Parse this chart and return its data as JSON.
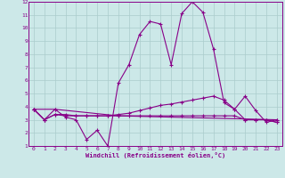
{
  "xlabel": "Windchill (Refroidissement éolien,°C)",
  "bg_color": "#cce8e8",
  "line_color": "#880088",
  "grid_color": "#aacccc",
  "xlim": [
    -0.5,
    23.5
  ],
  "ylim": [
    1,
    12
  ],
  "xticks": [
    0,
    1,
    2,
    3,
    4,
    5,
    6,
    7,
    8,
    9,
    10,
    11,
    12,
    13,
    14,
    15,
    16,
    17,
    18,
    19,
    20,
    21,
    22,
    23
  ],
  "yticks": [
    1,
    2,
    3,
    4,
    5,
    6,
    7,
    8,
    9,
    10,
    11,
    12
  ],
  "line1_x": [
    0,
    1,
    2,
    3,
    4,
    5,
    6,
    7,
    8,
    9,
    10,
    11,
    12,
    13,
    14,
    15,
    16,
    17,
    18,
    19,
    20,
    21,
    22,
    23
  ],
  "line1_y": [
    3.8,
    3.0,
    3.8,
    3.2,
    3.0,
    1.5,
    2.2,
    1.0,
    5.8,
    7.2,
    9.5,
    10.5,
    10.3,
    7.2,
    11.1,
    12.0,
    11.2,
    8.4,
    4.3,
    3.8,
    4.8,
    3.7,
    2.8,
    3.0
  ],
  "line2_x": [
    0,
    1,
    2,
    3,
    4,
    5,
    6,
    7,
    8,
    9,
    10,
    11,
    12,
    13,
    14,
    15,
    16,
    17,
    18,
    19,
    20,
    21,
    22,
    23
  ],
  "line2_y": [
    3.8,
    3.0,
    3.4,
    3.4,
    3.3,
    3.3,
    3.3,
    3.3,
    3.4,
    3.5,
    3.7,
    3.9,
    4.1,
    4.2,
    4.35,
    4.5,
    4.65,
    4.8,
    4.5,
    3.8,
    3.0,
    3.0,
    3.0,
    2.8
  ],
  "line3_x": [
    0,
    1,
    2,
    3,
    4,
    5,
    6,
    7,
    8,
    9,
    10,
    11,
    12,
    13,
    14,
    15,
    16,
    17,
    18,
    19,
    20,
    21,
    22,
    23
  ],
  "line3_y": [
    3.8,
    3.0,
    3.4,
    3.3,
    3.3,
    3.3,
    3.3,
    3.3,
    3.3,
    3.3,
    3.3,
    3.3,
    3.3,
    3.3,
    3.3,
    3.3,
    3.3,
    3.3,
    3.3,
    3.3,
    3.0,
    3.0,
    3.0,
    2.8
  ],
  "line4_x": [
    0,
    2,
    8,
    23
  ],
  "line4_y": [
    3.8,
    3.8,
    3.3,
    3.0
  ]
}
